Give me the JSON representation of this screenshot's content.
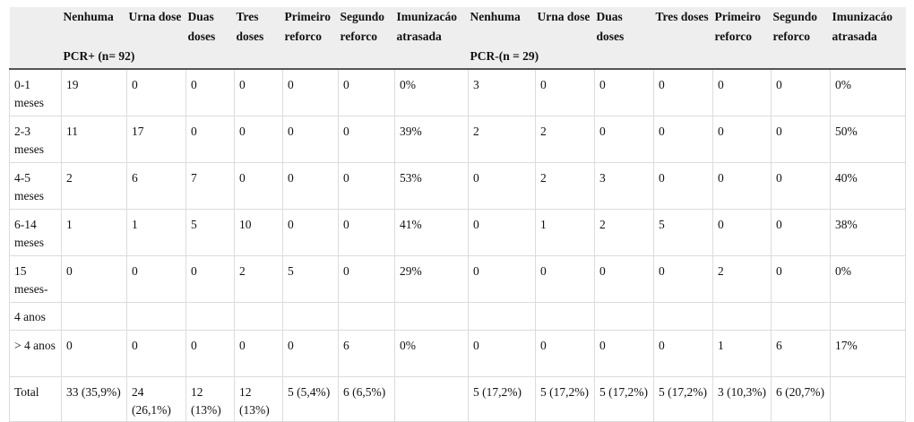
{
  "table": {
    "groups": [
      "PCR+ (n= 92)",
      "PCR-(n = 29)"
    ],
    "headers": [
      "Nenhuma",
      "Urna dose",
      "Duas doses",
      "Tres doses",
      "Primeiro reforco",
      "Segundo reforco",
      "Imunizacáo atrasada",
      "Nenhuma",
      "Urna dose",
      "Duas doses",
      "Tres doses",
      "Primeiro reforco",
      "Segundo reforco",
      "Imunizacáo atrasada"
    ],
    "rows": [
      [
        "0-1 meses",
        19,
        0,
        0,
        0,
        0,
        0,
        "0%",
        3,
        0,
        0,
        0,
        0,
        0,
        "0%"
      ],
      [
        "2-3 meses",
        11,
        17,
        0,
        0,
        0,
        0,
        "39%",
        2,
        2,
        0,
        0,
        0,
        0,
        "50%"
      ],
      [
        "4-5 meses",
        2,
        6,
        7,
        0,
        0,
        0,
        "53%",
        0,
        2,
        3,
        0,
        0,
        0,
        "40%"
      ],
      [
        "6-14 meses",
        1,
        1,
        5,
        10,
        0,
        0,
        "41%",
        0,
        1,
        2,
        5,
        0,
        0,
        "38%"
      ],
      [
        "15 meses-",
        0,
        0,
        0,
        2,
        5,
        0,
        "29%",
        0,
        0,
        0,
        0,
        2,
        0,
        "0%"
      ],
      [
        "4 anos",
        null,
        null,
        null,
        null,
        null,
        null,
        null,
        null,
        null,
        null,
        null,
        null,
        null,
        null
      ],
      [
        "> 4 anos",
        0,
        0,
        0,
        0,
        0,
        6,
        "0%",
        0,
        0,
        0,
        0,
        1,
        6,
        "17%"
      ],
      [
        "Total",
        "33 (35,9%)",
        "24 (26,1%)",
        "12 (13%)",
        "12 (13%)",
        "5 (5,4%)",
        "6 (6,5%)",
        null,
        "5 (17,2%)",
        "5 (17,2%)",
        "5 (17,2%)",
        "5 (17,2%)",
        "3 (10,3%)",
        "6 (20,7%)",
        null
      ]
    ]
  }
}
